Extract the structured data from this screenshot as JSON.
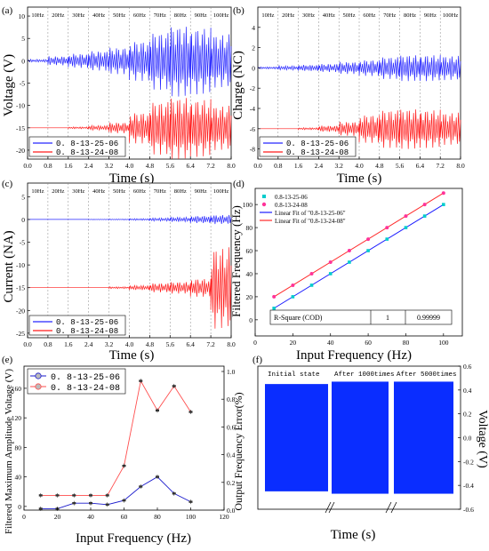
{
  "chart_data": [
    {
      "panel": "(a)",
      "type": "line",
      "ylabel": "Voltage (V)",
      "xlabel": "Time (s)",
      "xlim": [
        0,
        8
      ],
      "ylim": [
        -22,
        12
      ],
      "xticks": [
        "0.0",
        "0.8",
        "1.6",
        "2.4",
        "3.2",
        "4.0",
        "4.8",
        "5.6",
        "6.4",
        "7.2",
        "8.0"
      ],
      "yticks": [
        "-20",
        "-15",
        "-10",
        "-5",
        "0",
        "5",
        "10"
      ],
      "freq_labels": [
        "10Hz",
        "20Hz",
        "30Hz",
        "40Hz",
        "50Hz",
        "60Hz",
        "70Hz",
        "80Hz",
        "90Hz",
        "100Hz"
      ],
      "series": [
        {
          "name": "0. 8-13-25-06",
          "color": "#2626ff",
          "baseline": 0,
          "amplitude": [
            0.3,
            1.0,
            1.6,
            2.2,
            3.0,
            4.5,
            6.5,
            8.0,
            7.5,
            6.0
          ]
        },
        {
          "name": "0. 8-13-24-08",
          "color": "#ff1a1a",
          "baseline": -15,
          "amplitude": [
            0,
            0,
            0.2,
            0.5,
            1.2,
            3.5,
            6,
            7,
            6.5,
            5
          ]
        }
      ]
    },
    {
      "panel": "(b)",
      "type": "line",
      "ylabel": "Charge (NC)",
      "xlabel": "Time (s)",
      "xlim": [
        0,
        8
      ],
      "ylim": [
        -9,
        6
      ],
      "xticks": [
        "0.0",
        "0.8",
        "1.6",
        "2.4",
        "3.2",
        "4.0",
        "4.8",
        "5.6",
        "6.4",
        "7.2",
        "8.0"
      ],
      "yticks": [
        "-8",
        "-6",
        "-4",
        "-2",
        "0",
        "2",
        "4"
      ],
      "freq_labels": [
        "10Hz",
        "20Hz",
        "30Hz",
        "40Hz",
        "50Hz",
        "60Hz",
        "70Hz",
        "80Hz",
        "90Hz",
        "100Hz"
      ],
      "series": [
        {
          "name": "0. 8-13-25-06",
          "color": "#2626ff",
          "baseline": 0,
          "amplitude": [
            0.1,
            0.2,
            0.3,
            0.4,
            0.6,
            0.8,
            1.1,
            1.3,
            1.3,
            1.2
          ]
        },
        {
          "name": "0. 8-13-24-08",
          "color": "#ff1a1a",
          "baseline": -6,
          "amplitude": [
            0,
            0,
            0.1,
            0.3,
            0.7,
            1.4,
            1.9,
            2.0,
            1.9,
            1.6
          ]
        }
      ]
    },
    {
      "panel": "(c)",
      "type": "line",
      "ylabel": "Current (NA)",
      "xlabel": "Time (s)",
      "xlim": [
        0,
        8
      ],
      "ylim": [
        -26,
        8
      ],
      "xticks": [
        "0.0",
        "0.8",
        "1.6",
        "2.4",
        "3.2",
        "4.0",
        "4.8",
        "5.6",
        "6.4",
        "7.2",
        "8.0"
      ],
      "yticks": [
        "-25",
        "-20",
        "-15",
        "-10",
        "-5",
        "0",
        "5"
      ],
      "freq_labels": [
        "10Hz",
        "20Hz",
        "30Hz",
        "40Hz",
        "50Hz",
        "60Hz",
        "70Hz",
        "80Hz",
        "90Hz",
        "100Hz"
      ],
      "series": [
        {
          "name": "0. 8-13-25-06",
          "color": "#2626ff",
          "baseline": 0,
          "amplitude": [
            0,
            0,
            0,
            0.05,
            0.1,
            0.2,
            0.35,
            0.5,
            0.8,
            1.0
          ]
        },
        {
          "name": "0. 8-13-24-08",
          "color": "#ff1a1a",
          "baseline": -15,
          "amplitude": [
            0,
            0,
            0,
            0,
            0.2,
            0.5,
            1.0,
            1.3,
            2.0,
            9.0
          ]
        }
      ]
    },
    {
      "panel": "(d)",
      "type": "scatter",
      "xlabel": "Input Frequency (Hz)",
      "ylabel": "Filtered Frequency (Hz)",
      "xlim": [
        0,
        110
      ],
      "ylim": [
        -14,
        114
      ],
      "xticks": [
        0,
        20,
        40,
        60,
        80,
        100
      ],
      "yticks": [
        0,
        20,
        40,
        60,
        80,
        100
      ],
      "x": [
        10,
        20,
        30,
        40,
        50,
        60,
        70,
        80,
        90,
        100
      ],
      "series": [
        {
          "name": "0.8-13-25-06",
          "color": "#00cccc",
          "marker": "square",
          "y": [
            10,
            20,
            30,
            40,
            50,
            60,
            70,
            80,
            90,
            100
          ]
        },
        {
          "name": "0.8-13-24-08",
          "color": "#ff3399",
          "marker": "circle",
          "y": [
            20,
            30,
            40,
            50,
            60,
            70,
            80,
            90,
            100,
            110
          ]
        }
      ],
      "fits": [
        {
          "name": "Linear Fit of \"0.8-13-25-06\"",
          "color": "#1a1aff",
          "y": [
            10,
            100
          ]
        },
        {
          "name": "Linear Fit of \"0.8-13-24-08\"",
          "color": "#ff2a2a",
          "y": [
            20,
            110
          ]
        }
      ],
      "table": {
        "label": "R-Square (COD)",
        "v1": "1",
        "v2": "0.99999"
      }
    },
    {
      "panel": "(e)",
      "type": "line",
      "xlabel": "Input Frequency (Hz)",
      "ylabel": "Filtered Maximum Amplitude Voltage (V)",
      "ylabel_right": "Output Frequency Error(%)",
      "xlim": [
        0,
        120
      ],
      "ylim": [
        -5,
        190
      ],
      "ylim_right": [
        0,
        1.0
      ],
      "xticks": [
        0,
        20,
        40,
        60,
        80,
        100,
        120
      ],
      "yticks": [
        0,
        40,
        80,
        120,
        160
      ],
      "yticks_right": [
        "0.0",
        "0.2",
        "0.4",
        "0.6",
        "0.8",
        "1.0"
      ],
      "x": [
        10,
        20,
        30,
        40,
        50,
        60,
        70,
        80,
        90,
        100
      ],
      "series": [
        {
          "name": "0. 8-13-25-06",
          "color": "#1a1acc",
          "axis": "right",
          "y": [
            0.01,
            0.01,
            0.05,
            0.05,
            0.04,
            0.07,
            0.17,
            0.24,
            0.12,
            0.06
          ]
        },
        {
          "name": "0. 8-13-24-08",
          "color": "#ff4d4d",
          "axis": "left",
          "y": [
            15,
            15,
            15,
            15,
            15,
            55,
            170,
            130,
            163,
            128
          ]
        }
      ]
    },
    {
      "panel": "(f)",
      "type": "area",
      "xlabel": "Time (s)",
      "ylabel_right": "Voltage (V)",
      "ylim_right": [
        -0.6,
        0.6
      ],
      "yticks_right": [
        "-0.6",
        "-0.4",
        "-0.2",
        "0.0",
        "0.2",
        "0.4",
        "0.6"
      ],
      "segments": [
        {
          "label": "Initial state",
          "amplitude": 0.45
        },
        {
          "label": "After 1000times",
          "amplitude": 0.47
        },
        {
          "label": "After 5000times",
          "amplitude": 0.47
        }
      ],
      "color": "#0a2dff"
    }
  ],
  "panels": {
    "a": {
      "tag": "(a)",
      "ylabel": "Voltage (V)",
      "xlabel": "Time (s)"
    },
    "b": {
      "tag": "(b)",
      "ylabel": "Charge (NC)",
      "xlabel": "Time (s)"
    },
    "c": {
      "tag": "(c)",
      "ylabel": "Current (NA)",
      "xlabel": "Time (s)"
    },
    "d": {
      "tag": "(d)",
      "ylabel": "Filtered Frequency (Hz)",
      "xlabel": "Input Frequency (Hz)"
    },
    "e": {
      "tag": "(e)",
      "ylabel": "Filtered Maximum Amplitude Voltage (V)",
      "ylabel_right": "Output Frequency Error(%)",
      "xlabel": "Input Frequency (Hz)"
    },
    "f": {
      "tag": "(f)",
      "ylabel_right": "Voltage (V)",
      "xlabel": "Time (s)"
    }
  }
}
